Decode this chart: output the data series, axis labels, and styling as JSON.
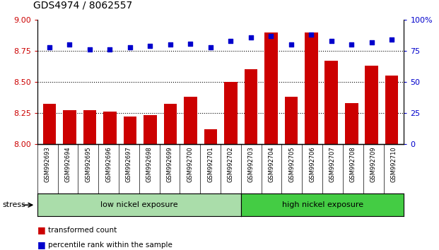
{
  "title": "GDS4974 / 8062557",
  "samples": [
    "GSM992693",
    "GSM992694",
    "GSM992695",
    "GSM992696",
    "GSM992697",
    "GSM992698",
    "GSM992699",
    "GSM992700",
    "GSM992701",
    "GSM992702",
    "GSM992703",
    "GSM992704",
    "GSM992705",
    "GSM992706",
    "GSM992707",
    "GSM992708",
    "GSM992709",
    "GSM992710"
  ],
  "bar_values": [
    8.32,
    8.27,
    8.27,
    8.26,
    8.22,
    8.23,
    8.32,
    8.38,
    8.12,
    8.5,
    8.6,
    8.9,
    8.38,
    8.9,
    8.67,
    8.33,
    8.63,
    8.55
  ],
  "percentile_values": [
    78,
    80,
    76,
    76,
    78,
    79,
    80,
    81,
    78,
    83,
    86,
    87,
    80,
    88,
    83,
    80,
    82,
    84
  ],
  "bar_color": "#cc0000",
  "percentile_color": "#0000cc",
  "ylim_left": [
    8.0,
    9.0
  ],
  "ylim_right": [
    0,
    100
  ],
  "yticks_left": [
    8.0,
    8.25,
    8.5,
    8.75,
    9.0
  ],
  "yticks_right": [
    0,
    25,
    50,
    75,
    100
  ],
  "grid_values": [
    8.25,
    8.5,
    8.75
  ],
  "low_group": "low nickel exposure",
  "high_group": "high nickel exposure",
  "low_count": 10,
  "high_count": 8,
  "stress_label": "stress",
  "legend_bar": "transformed count",
  "legend_pct": "percentile rank within the sample",
  "bg_color": "#ffffff",
  "plot_bg": "#ffffff",
  "label_color_left": "#cc0000",
  "label_color_right": "#0000cc",
  "low_bg": "#aaddaa",
  "high_bg": "#44cc44",
  "xtick_bg": "#cccccc"
}
